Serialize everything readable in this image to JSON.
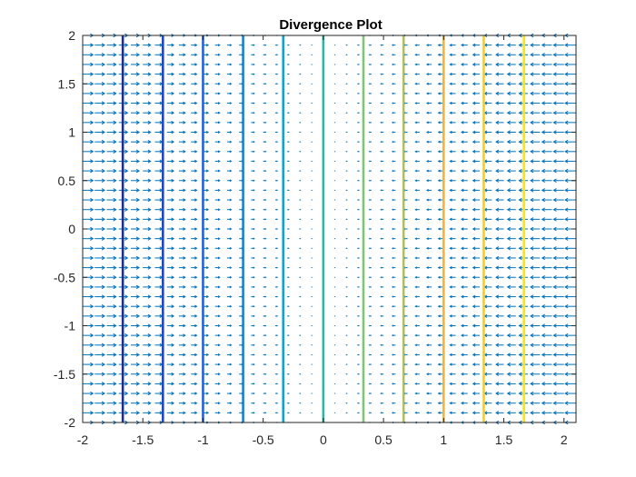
{
  "chart_data": {
    "type": "quiver+contour",
    "title": "Divergence Plot",
    "xlabel": "",
    "ylabel": "",
    "xlim": [
      -2,
      2.1
    ],
    "ylim": [
      -2,
      2
    ],
    "xticks": [
      -2,
      -1.5,
      -1,
      -0.5,
      0,
      0.5,
      1,
      1.5,
      2
    ],
    "yticks": [
      -2,
      -1.5,
      -1,
      -0.5,
      0,
      0.5,
      1,
      1.5,
      2
    ],
    "xtick_labels": [
      "-2",
      "-1.5",
      "-1",
      "-0.5",
      "0",
      "0.5",
      "1",
      "1.5",
      "2"
    ],
    "ytick_labels": [
      "-2",
      "-1.5",
      "-1",
      "-0.5",
      "0",
      "0.5",
      "1",
      "1.5",
      "2"
    ],
    "grid": false,
    "contour_lines": [
      {
        "x": -1.6667,
        "color": "#1f2d8f"
      },
      {
        "x": -1.3333,
        "color": "#1f47c8"
      },
      {
        "x": -1.0,
        "color": "#1e64de"
      },
      {
        "x": -0.6667,
        "color": "#1185d6"
      },
      {
        "x": -0.3333,
        "color": "#0aa7cf"
      },
      {
        "x": 0.0,
        "color": "#2db6a5"
      },
      {
        "x": 0.3333,
        "color": "#7fc47a"
      },
      {
        "x": 0.6667,
        "color": "#b7bd5a"
      },
      {
        "x": 1.0,
        "color": "#f0b442"
      },
      {
        "x": 1.3333,
        "color": "#f7cb28"
      },
      {
        "x": 1.6667,
        "color": "#f8e31c"
      }
    ],
    "quiver": {
      "color": "#0072bd",
      "grid_x": {
        "start": -2,
        "end": 2.1,
        "step": 0.1
      },
      "grid_y": {
        "start": -2,
        "end": 2,
        "step": 0.1
      },
      "vector_field": "u = -x, v = 0"
    }
  }
}
